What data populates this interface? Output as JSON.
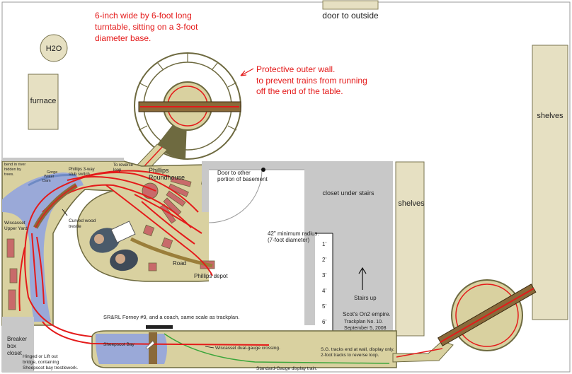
{
  "notes": {
    "turntable_line1": "6-inch wide by 6-foot long",
    "turntable_line2": "turntable, sitting on a 3-foot",
    "turntable_line3": "diameter base.",
    "wall_line1": "Protective outer wall.",
    "wall_line2": "to prevent trains from running",
    "wall_line3": "off the end of the table."
  },
  "rooms": {
    "door_outside": "door to outside",
    "h2o": "H2O",
    "furnace": "furnace",
    "shelves_right": "shelves",
    "shelves_mid": "shelves",
    "closet_under_stairs": "closet under stairs",
    "door_other_line1": "Door to other",
    "door_other_line2": "portion of basement",
    "breaker_line1": "Breaker",
    "breaker_line2": "box",
    "breaker_line3": "closet",
    "stairs_up": "Stairs up"
  },
  "layout": {
    "bend_line1": "bend in river",
    "bend_line2": "hidden by",
    "bend_line3": "trees.",
    "gorge_line1": "Gorge",
    "gorge_line2": "Water",
    "gorge_line3": "Dam",
    "phillips_switch_line1": "Phillips 3-way",
    "phillips_switch_line2": "stub switch",
    "to_reverse_line1": "To reverse",
    "to_reverse_line2": "loop",
    "phillips_rh_line1": "Phillips",
    "phillips_rh_line2": "Roundhouse",
    "wiscasset_line1": "Wiscasset",
    "wiscasset_line2": "Upper Yard",
    "trestle_line1": "Curved wood",
    "trestle_line2": "trestle",
    "radius_line1": "42\" minimum radius.",
    "radius_line2": "(7-foot diameter)",
    "road": "Road",
    "phillips_depot": "Phillips depot",
    "forney": "SR&RL Forney #9, and a coach, same scale as trackplan.",
    "sheepscot_bay": "Sheepscot Bay",
    "crossing": "Wiscasset dual-gauge crossing.",
    "standard_gauge": "Standard-Gauge display train.",
    "sg_line1": "S.G. tracks end at wall, display only.",
    "sg_line2": "2-foot tracks to reverse loop.",
    "hinged_line1": "Hinged or Lift out",
    "hinged_line2": "bridge, containing",
    "hinged_line3": "Sheepscot bay trestlework.",
    "title_line1": "Scot's On2 empire.",
    "title_line2": "Trackplan No. 10.",
    "title_line3": "September 5, 2008"
  },
  "ruler": [
    "1'",
    "2'",
    "3'",
    "4'",
    "5'",
    "6'"
  ],
  "colors": {
    "table": "#d9d1a0",
    "table_edge": "#6e6a40",
    "track": "#e41a1a",
    "water": "#9aa9d8",
    "wall": "#c8c8c8",
    "note": "#e41a1a",
    "std_gauge": "#3aa53a"
  }
}
